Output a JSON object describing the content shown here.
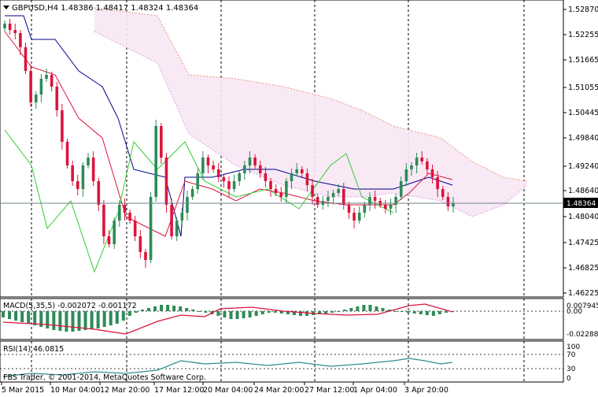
{
  "chart_header": {
    "symbol_text": "GBPUSD,H4  1.48386 1.48417 1.48324 1.48364"
  },
  "macd_header": {
    "text": "MACD(5,35,5) -0.002072 -0.001172"
  },
  "rsi_header": {
    "text": "RSI(14) 46.0815"
  },
  "footer": {
    "copyright": "FBS Trader, © 2001-2014, MetaQuotes Software Corp."
  },
  "current_price_label": "1.48364",
  "colors": {
    "bull": "#2e8b57",
    "bear": "#dc143c",
    "kijun": "#00008b",
    "tenkan": "#dc143c",
    "chikou": "#32cd32",
    "cloud": "#dda0dd",
    "cloud_edge": "#e9967a",
    "macd_hist": "#2e8b57",
    "macd_signal": "#dc143c",
    "rsi": "#2f8f8f",
    "grid": "#000000",
    "price_line": "#708090"
  },
  "chart_data": [
    {
      "type": "candlestick",
      "title": "GBPUSD,H4",
      "y_ticks": [
        "1.52870",
        "1.52255",
        "1.51665",
        "1.51055",
        "1.50445",
        "1.49840",
        "1.49240",
        "1.48640",
        "1.48040",
        "1.47425",
        "1.46825",
        "1.46225"
      ],
      "x_ticks": [
        "5 Mar 2015",
        "10 Mar 04:00",
        "12 Mar 20:00",
        "17 Mar 12:00",
        "20 Mar 04:00",
        "24 Mar 20:00",
        "27 Mar 12:00",
        "1 Apr 04:00",
        "3 Apr 20:00"
      ],
      "ylim": [
        1.461,
        1.53
      ],
      "last_price": 1.48364,
      "overlays": [
        "Ichimoku Kinko Hyo"
      ]
    },
    {
      "type": "bar",
      "title": "MACD(5,35,5)",
      "values_current": [
        -0.002072,
        -0.001172
      ],
      "y_ticks": [
        "0.007945",
        "0.00",
        "-0.022883"
      ]
    },
    {
      "type": "line",
      "title": "RSI(14)",
      "value_current": 46.0815,
      "y_ticks": [
        "100",
        "70",
        "30",
        "0"
      ]
    }
  ]
}
